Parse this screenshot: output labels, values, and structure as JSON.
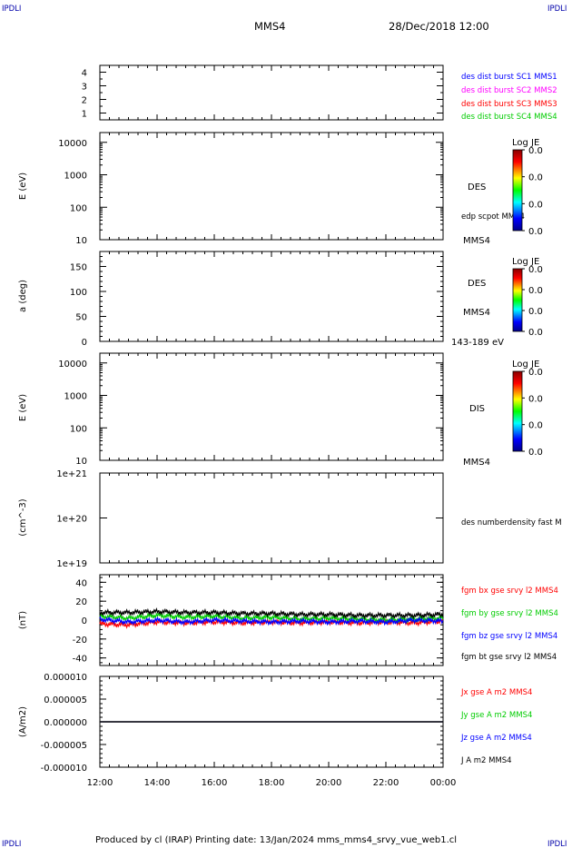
{
  "header": {
    "corner_tl": "IPDLI",
    "corner_tr": "IPDLI",
    "corner_bl": "IPDLI",
    "corner_br": "IPDLI",
    "title": "MMS4",
    "datetime": "28/Dec/2018 12:00"
  },
  "footer": {
    "credits": "Produced by cl (IRAP)   Printing date: 13/Jan/2024   mms_mms4_srvy_vue_web1.cl"
  },
  "colors": {
    "blue": "#0000ff",
    "magenta": "#ff00ff",
    "red": "#ff0000",
    "green": "#00cc00",
    "black": "#000000"
  },
  "colorbar": {
    "title": "Log JE",
    "ticks": [
      "0.0",
      "0.0",
      "0.0",
      "0.0"
    ]
  },
  "panel_labels": {
    "p1": [
      "des dist burst SC1 MMS1",
      "des dist burst SC2 MMS2",
      "des dist burst SC3 MMS3",
      "des dist burst SC4 MMS4"
    ],
    "p2_a": "DES",
    "p2_b": "edp scpot MMS4",
    "p2_c": "MMS4",
    "p3_a": "DES",
    "p3_b": "MMS4",
    "p3_c": "143-189 eV",
    "p4_a": "DIS",
    "p4_b": "MMS4",
    "p5_a": "des numberdensity fast M",
    "p6": [
      "fgm bx gse srvy l2 MMS4",
      "fgm by gse srvy l2 MMS4",
      "fgm bz gse srvy l2 MMS4",
      "fgm bt gse srvy l2 MMS4"
    ],
    "p7": [
      "Jx gse A m2 MMS4",
      "Jy gse A m2 MMS4",
      "Jz gse A m2 MMS4",
      "J A m2 MMS4"
    ]
  },
  "chart_data": [
    {
      "type": "line",
      "panel": "spacecraft-availability",
      "ylabel": "",
      "ylim": [
        0.5,
        4.5
      ],
      "yticks": [
        "1",
        "2",
        "3",
        "4"
      ],
      "series": []
    },
    {
      "type": "heatmap",
      "panel": "des-energy-spectrogram",
      "ylabel": "E (eV)",
      "yscale": "log",
      "ylim": [
        10,
        20000
      ],
      "yticks": [
        "10",
        "100",
        "1000",
        "10000"
      ]
    },
    {
      "type": "heatmap",
      "panel": "des-pitch-angle",
      "ylabel": "a (deg)",
      "ylim": [
        0,
        180
      ],
      "yticks": [
        "0",
        "50",
        "100",
        "150"
      ]
    },
    {
      "type": "heatmap",
      "panel": "dis-energy-spectrogram",
      "ylabel": "E (eV)",
      "yscale": "log",
      "ylim": [
        10,
        20000
      ],
      "yticks": [
        "10",
        "100",
        "1000",
        "10000"
      ]
    },
    {
      "type": "line",
      "panel": "number-density",
      "ylabel": "(cm^-3)",
      "yscale": "log",
      "ylim": [
        1e+19,
        1e+21
      ],
      "yticks": [
        "1e+19",
        "1e+20",
        "1e+21"
      ],
      "series": []
    },
    {
      "type": "line",
      "panel": "magnetic-field",
      "ylabel": "(nT)",
      "ylim": [
        -48,
        48
      ],
      "yticks": [
        "-40",
        "-20",
        "0",
        "20",
        "40"
      ],
      "x": [
        12,
        13,
        14,
        15,
        16,
        17,
        18,
        19,
        20,
        21,
        22,
        23,
        24
      ],
      "series": [
        {
          "name": "fgm bx gse srvy l2 MMS4",
          "color": "#ff0000",
          "values": [
            -4,
            -5,
            -2,
            -3,
            -2,
            -3,
            -2,
            -3,
            -2,
            -3,
            -2,
            -3,
            -1
          ]
        },
        {
          "name": "fgm by gse srvy l2 MMS4",
          "color": "#00cc00",
          "values": [
            4,
            2,
            5,
            3,
            4,
            2,
            3,
            1,
            2,
            1,
            0,
            1,
            2
          ]
        },
        {
          "name": "fgm bz gse srvy l2 MMS4",
          "color": "#0000ff",
          "values": [
            1,
            -2,
            0,
            -2,
            0,
            -1,
            -2,
            -1,
            -2,
            -1,
            -2,
            0,
            -1
          ]
        },
        {
          "name": "fgm bt gse srvy l2 MMS4",
          "color": "#000000",
          "values": [
            8,
            8,
            9,
            8,
            8,
            7,
            7,
            6,
            6,
            5,
            5,
            5,
            6
          ]
        }
      ]
    },
    {
      "type": "line",
      "panel": "current-density",
      "ylabel": "(A/m2)",
      "ylim": [
        -1e-05,
        1e-05
      ],
      "yticks": [
        "-0.000010",
        "-0.000005",
        "0.000000",
        "0.000005",
        "0.000010"
      ],
      "x": [
        12,
        24
      ],
      "series": [
        {
          "name": "Jx gse A m2 MMS4",
          "color": "#ff0000",
          "values": [
            0,
            0
          ]
        },
        {
          "name": "Jy gse A m2 MMS4",
          "color": "#00cc00",
          "values": [
            0,
            0
          ]
        },
        {
          "name": "Jz gse A m2 MMS4",
          "color": "#0000ff",
          "values": [
            0,
            0
          ]
        },
        {
          "name": "J A m2 MMS4",
          "color": "#000000",
          "values": [
            0,
            0
          ]
        }
      ]
    }
  ],
  "xaxis": {
    "ticks": [
      "12:00",
      "14:00",
      "16:00",
      "18:00",
      "20:00",
      "22:00",
      "00:00"
    ],
    "range_hours": [
      12,
      24
    ]
  }
}
